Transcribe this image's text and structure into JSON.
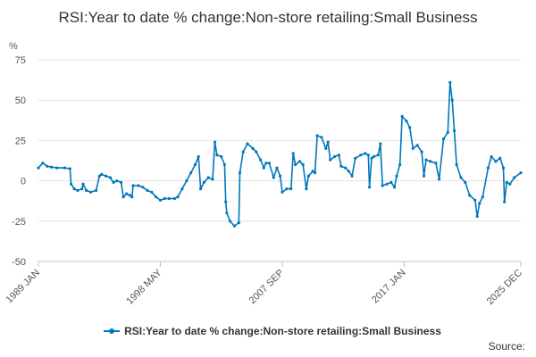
{
  "chart_data": {
    "type": "line",
    "title": "RSI:Year to date % change:Non-store retailing:Small Business",
    "ylabel": "%",
    "xlabel": "",
    "ylim": [
      -50,
      75
    ],
    "yticks": [
      "-50",
      "-25",
      "0",
      "25",
      "50",
      "75"
    ],
    "xtick_labels": [
      "1989 JAN",
      "1998 MAY",
      "2007 SEP",
      "2017 JAN",
      "2025 DEC"
    ],
    "x_range": [
      "1989-01",
      "2025-12"
    ],
    "grid": "horizontal",
    "legend_position": "bottom",
    "series": [
      {
        "name": "RSI:Year to date % change:Non-store retailing:Small Business",
        "color": "#0077bb",
        "points": [
          [
            "1989-01",
            8
          ],
          [
            "1989-05",
            11
          ],
          [
            "1989-09",
            9
          ],
          [
            "1990-01",
            8.5
          ],
          [
            "1990-06",
            8
          ],
          [
            "1991-01",
            8
          ],
          [
            "1991-06",
            7.5
          ],
          [
            "1991-07",
            -2
          ],
          [
            "1991-10",
            -5
          ],
          [
            "1992-01",
            -6
          ],
          [
            "1992-05",
            -5
          ],
          [
            "1992-06",
            -2
          ],
          [
            "1992-09",
            -6
          ],
          [
            "1993-01",
            -7
          ],
          [
            "1993-06",
            -6
          ],
          [
            "1993-09",
            3
          ],
          [
            "1993-11",
            4
          ],
          [
            "1994-03",
            3
          ],
          [
            "1994-07",
            2
          ],
          [
            "1994-10",
            -1
          ],
          [
            "1995-01",
            0
          ],
          [
            "1995-05",
            -1
          ],
          [
            "1995-07",
            -10
          ],
          [
            "1995-10",
            -8
          ],
          [
            "1996-01",
            -9
          ],
          [
            "1996-03",
            -10
          ],
          [
            "1996-04",
            -3
          ],
          [
            "1996-09",
            -3
          ],
          [
            "1997-01",
            -4
          ],
          [
            "1997-05",
            -6
          ],
          [
            "1997-09",
            -7
          ],
          [
            "1998-01",
            -10
          ],
          [
            "1998-05",
            -12
          ],
          [
            "1998-09",
            -11
          ],
          [
            "1999-01",
            -11
          ],
          [
            "1999-06",
            -11
          ],
          [
            "1999-09",
            -10
          ],
          [
            "2000-01",
            -5
          ],
          [
            "2000-05",
            0
          ],
          [
            "2000-09",
            5
          ],
          [
            "2001-01",
            10
          ],
          [
            "2001-04",
            15
          ],
          [
            "2001-06",
            -5
          ],
          [
            "2001-09",
            -1
          ],
          [
            "2002-01",
            2
          ],
          [
            "2002-05",
            1
          ],
          [
            "2002-07",
            24
          ],
          [
            "2002-09",
            16
          ],
          [
            "2003-01",
            15
          ],
          [
            "2003-04",
            10
          ],
          [
            "2003-05",
            -13
          ],
          [
            "2003-06",
            -20
          ],
          [
            "2003-09",
            -25
          ],
          [
            "2004-01",
            -28
          ],
          [
            "2004-05",
            -26
          ],
          [
            "2004-06",
            5
          ],
          [
            "2004-09",
            18
          ],
          [
            "2005-01",
            23
          ],
          [
            "2005-06",
            20
          ],
          [
            "2005-09",
            18
          ],
          [
            "2006-01",
            13
          ],
          [
            "2006-04",
            8
          ],
          [
            "2006-06",
            11
          ],
          [
            "2006-09",
            11
          ],
          [
            "2007-01",
            2
          ],
          [
            "2007-04",
            8
          ],
          [
            "2007-07",
            3
          ],
          [
            "2007-09",
            -7
          ],
          [
            "2008-01",
            -5
          ],
          [
            "2008-05",
            -5
          ],
          [
            "2008-07",
            17
          ],
          [
            "2008-09",
            10
          ],
          [
            "2009-01",
            12
          ],
          [
            "2009-04",
            10
          ],
          [
            "2009-07",
            -5
          ],
          [
            "2009-09",
            3
          ],
          [
            "2010-01",
            6
          ],
          [
            "2010-03",
            5
          ],
          [
            "2010-05",
            28
          ],
          [
            "2010-09",
            27
          ],
          [
            "2011-01",
            20
          ],
          [
            "2011-03",
            24
          ],
          [
            "2011-05",
            13
          ],
          [
            "2011-09",
            15
          ],
          [
            "2012-01",
            16
          ],
          [
            "2012-03",
            9
          ],
          [
            "2012-07",
            8
          ],
          [
            "2012-10",
            6
          ],
          [
            "2013-01",
            3
          ],
          [
            "2013-04",
            14
          ],
          [
            "2013-09",
            16
          ],
          [
            "2014-01",
            17
          ],
          [
            "2014-04",
            16
          ],
          [
            "2014-05",
            -4
          ],
          [
            "2014-07",
            14
          ],
          [
            "2014-09",
            15
          ],
          [
            "2015-01",
            16
          ],
          [
            "2015-03",
            23
          ],
          [
            "2015-05",
            -3
          ],
          [
            "2015-09",
            -2
          ],
          [
            "2016-01",
            -1
          ],
          [
            "2016-04",
            -4
          ],
          [
            "2016-06",
            3
          ],
          [
            "2016-09",
            10
          ],
          [
            "2016-11",
            40
          ],
          [
            "2017-03",
            37
          ],
          [
            "2017-06",
            33
          ],
          [
            "2017-09",
            20
          ],
          [
            "2018-01",
            22
          ],
          [
            "2018-05",
            18
          ],
          [
            "2018-07",
            3
          ],
          [
            "2018-09",
            13
          ],
          [
            "2019-01",
            12
          ],
          [
            "2019-06",
            11
          ],
          [
            "2019-09",
            1
          ],
          [
            "2020-01",
            26
          ],
          [
            "2020-05",
            30
          ],
          [
            "2020-07",
            61
          ],
          [
            "2020-09",
            50
          ],
          [
            "2020-11",
            31
          ],
          [
            "2021-01",
            10
          ],
          [
            "2021-05",
            2
          ],
          [
            "2021-09",
            -1
          ],
          [
            "2022-01",
            -9
          ],
          [
            "2022-06",
            -12
          ],
          [
            "2022-08",
            -22
          ],
          [
            "2022-10",
            -14
          ],
          [
            "2023-01",
            -10
          ],
          [
            "2023-06",
            8
          ],
          [
            "2023-09",
            15
          ],
          [
            "2024-01",
            12
          ],
          [
            "2024-05",
            14
          ],
          [
            "2024-08",
            8
          ],
          [
            "2024-09",
            -13
          ],
          [
            "2024-11",
            -1
          ],
          [
            "2025-02",
            -2
          ],
          [
            "2025-06",
            2
          ],
          [
            "2025-12",
            5
          ]
        ]
      }
    ]
  },
  "source_label": "Source:"
}
